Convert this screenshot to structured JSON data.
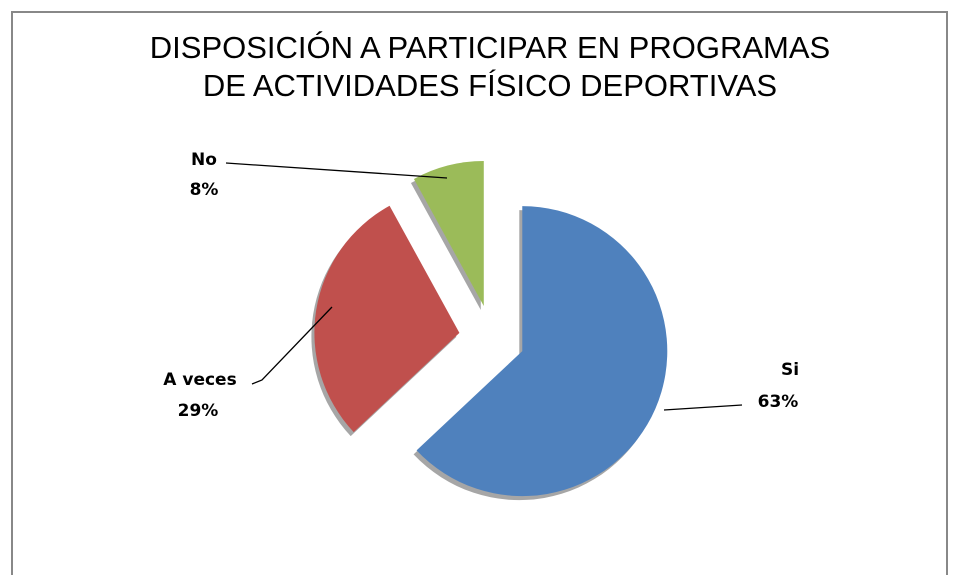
{
  "chart_data": {
    "type": "pie",
    "title": [
      "DISPOSICIÓN A PARTICIPAR EN PROGRAMAS",
      "DE ACTIVIDADES FÍSICO DEPORTIVAS"
    ],
    "categories": [
      "Si",
      "A veces",
      "No"
    ],
    "values": [
      63,
      29,
      8
    ],
    "value_labels": [
      "63%",
      "29%",
      "8%"
    ],
    "colors": [
      "#4f81bd",
      "#c0504d",
      "#9bbb59"
    ],
    "exploded": true
  }
}
